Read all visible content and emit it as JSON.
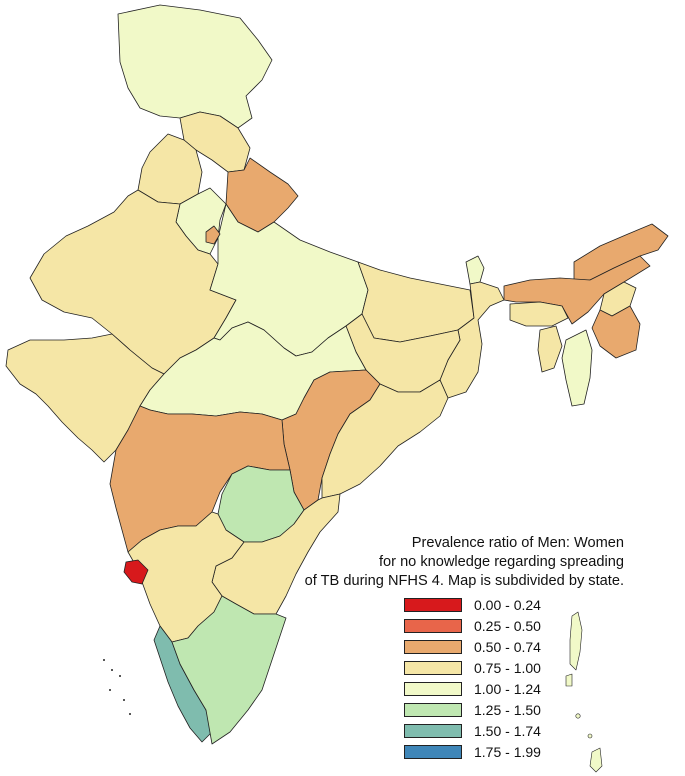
{
  "legend": {
    "title_lines": [
      "Prevalence ratio of Men: Women",
      "for no knowledge regarding spreading",
      "of TB during NFHS 4. Map is subdivided by state."
    ],
    "classes": [
      {
        "label": "0.00 - 0.24",
        "color": "#d7191c"
      },
      {
        "label": "0.25 - 0.50",
        "color": "#e8654a"
      },
      {
        "label": "0.50 - 0.74",
        "color": "#e8a96e"
      },
      {
        "label": "0.75 - 1.00",
        "color": "#f5e6a6"
      },
      {
        "label": "1.00 - 1.24",
        "color": "#f1f9c8"
      },
      {
        "label": "1.25 - 1.50",
        "color": "#bfe7b1"
      },
      {
        "label": "1.50 - 1.74",
        "color": "#7fbcae"
      },
      {
        "label": "1.75 - 1.99",
        "color": "#3f86b8"
      }
    ]
  },
  "map_data": {
    "type": "choropleth",
    "regions": [
      {
        "name": "Jammu & Kashmir",
        "class_index": 4
      },
      {
        "name": "Himachal Pradesh",
        "class_index": 3
      },
      {
        "name": "Punjab",
        "class_index": 3
      },
      {
        "name": "Uttarakhand",
        "class_index": 2
      },
      {
        "name": "Haryana",
        "class_index": 4
      },
      {
        "name": "Delhi",
        "class_index": 2
      },
      {
        "name": "Rajasthan",
        "class_index": 3
      },
      {
        "name": "Uttar Pradesh",
        "class_index": 4
      },
      {
        "name": "Bihar",
        "class_index": 3
      },
      {
        "name": "Sikkim",
        "class_index": 4
      },
      {
        "name": "Arunachal Pradesh",
        "class_index": 2
      },
      {
        "name": "Assam",
        "class_index": 2
      },
      {
        "name": "Nagaland",
        "class_index": 3
      },
      {
        "name": "Meghalaya",
        "class_index": 3
      },
      {
        "name": "Manipur",
        "class_index": 2
      },
      {
        "name": "Mizoram",
        "class_index": 4
      },
      {
        "name": "Tripura",
        "class_index": 3
      },
      {
        "name": "West Bengal",
        "class_index": 3
      },
      {
        "name": "Jharkhand",
        "class_index": 3
      },
      {
        "name": "Odisha",
        "class_index": 3
      },
      {
        "name": "Chhattisgarh",
        "class_index": 2
      },
      {
        "name": "Madhya Pradesh",
        "class_index": 4
      },
      {
        "name": "Gujarat",
        "class_index": 3
      },
      {
        "name": "Maharashtra",
        "class_index": 2
      },
      {
        "name": "Telangana",
        "class_index": 5
      },
      {
        "name": "Andhra Pradesh",
        "class_index": 3
      },
      {
        "name": "Karnataka",
        "class_index": 3
      },
      {
        "name": "Goa",
        "class_index": 0
      },
      {
        "name": "Kerala",
        "class_index": 6
      },
      {
        "name": "Tamil Nadu",
        "class_index": 5
      },
      {
        "name": "Andaman & Nicobar Islands",
        "class_index": 4
      }
    ]
  }
}
